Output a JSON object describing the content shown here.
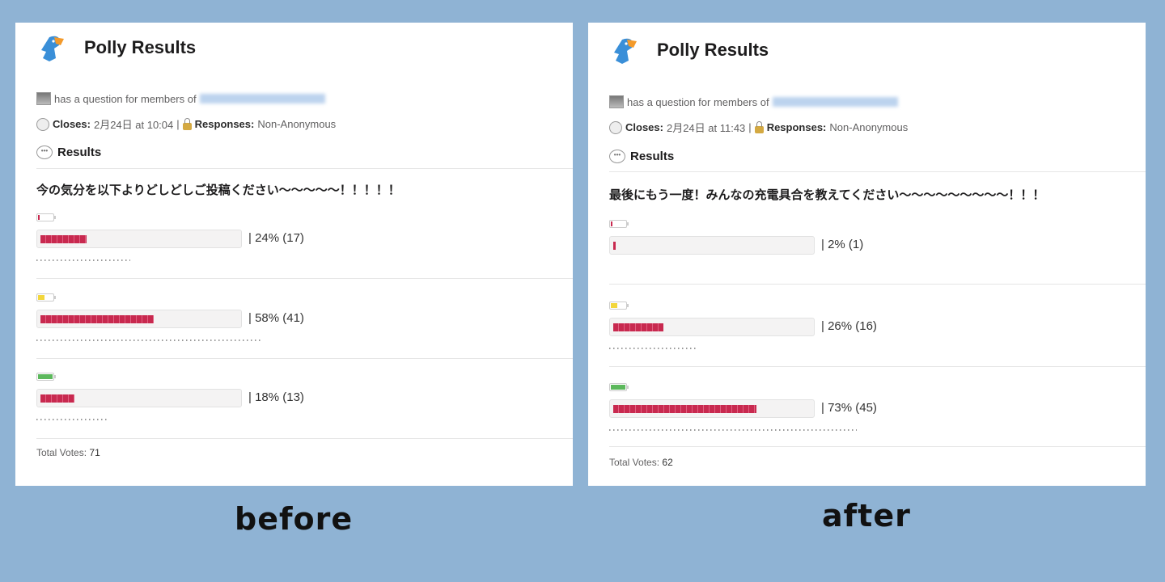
{
  "colors": {
    "background": "#8fb3d4",
    "bar_fill": "#c8294f",
    "battery_low": "#c8294f",
    "battery_mid": "#f2d63c",
    "battery_full": "#5cb85c"
  },
  "panels": [
    {
      "caption": "before",
      "title": "Polly Results",
      "asker_text": "has a question for members of",
      "closes_label": "Closes:",
      "closes_value": "2月24日 at 10:04",
      "divider": "|",
      "responses_label": "Responses:",
      "responses_value": "Non-Anonymous",
      "results_label": "Results",
      "question": "今の気分を以下よりどしどしご投稿ください〜〜〜〜〜！！！！！",
      "options": [
        {
          "icon": "battery-low-icon",
          "level": "low",
          "percent": 24,
          "votes": 17,
          "label": "|  24% (17)"
        },
        {
          "icon": "battery-mid-icon",
          "level": "mid",
          "percent": 58,
          "votes": 41,
          "label": "|  58% (41)"
        },
        {
          "icon": "battery-full-icon",
          "level": "full",
          "percent": 18,
          "votes": 13,
          "label": "|  18% (13)"
        }
      ],
      "total_label": "Total Votes:",
      "total_value": "71"
    },
    {
      "caption": "after",
      "title": "Polly Results",
      "asker_text": "has a question for members of",
      "closes_label": "Closes:",
      "closes_value": "2月24日 at 11:43",
      "divider": "|",
      "responses_label": "Responses:",
      "responses_value": "Non-Anonymous",
      "results_label": "Results",
      "question": "最後にもう一度！みんなの充電具合を教えてください〜〜〜〜〜〜〜〜〜！！！",
      "options": [
        {
          "icon": "battery-low-icon",
          "level": "low",
          "percent": 2,
          "votes": 1,
          "label": "|  2% (1)"
        },
        {
          "icon": "battery-mid-icon",
          "level": "mid",
          "percent": 26,
          "votes": 16,
          "label": "|  26% (16)"
        },
        {
          "icon": "battery-full-icon",
          "level": "full",
          "percent": 73,
          "votes": 45,
          "label": "|  73% (45)"
        }
      ],
      "total_label": "Total Votes:",
      "total_value": "62"
    }
  ]
}
